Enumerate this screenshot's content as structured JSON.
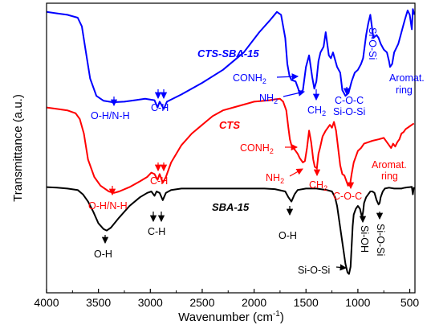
{
  "chart_data": {
    "type": "line",
    "xlabel": "Wavenumber (cm",
    "xlabel_sup": "-1",
    "xlabel_close": ")",
    "ylabel": "Transmittance (a.u.)",
    "xlim": [
      4000,
      450
    ],
    "x_reversed": true,
    "x_ticks": [
      "4000",
      "3500",
      "3000",
      "2500",
      "2000",
      "1500",
      "1000",
      "500"
    ],
    "y_ticks_shown": false,
    "grid": false,
    "legend": "none",
    "series": [
      {
        "name": "CTS-SBA-15",
        "color": "#0000ff",
        "points": [
          [
            4000,
            97
          ],
          [
            3900,
            96.5
          ],
          [
            3800,
            96
          ],
          [
            3700,
            95
          ],
          [
            3660,
            92
          ],
          [
            3620,
            83
          ],
          [
            3580,
            74
          ],
          [
            3520,
            68
          ],
          [
            3450,
            66.3
          ],
          [
            3360,
            65.8
          ],
          [
            3250,
            66
          ],
          [
            3150,
            66.5
          ],
          [
            3050,
            67
          ],
          [
            2960,
            66.5
          ],
          [
            2930,
            64
          ],
          [
            2910,
            66
          ],
          [
            2870,
            63.5
          ],
          [
            2840,
            66
          ],
          [
            2700,
            68.5
          ],
          [
            2500,
            72.5
          ],
          [
            2300,
            77
          ],
          [
            2100,
            83
          ],
          [
            1950,
            90
          ],
          [
            1850,
            94
          ],
          [
            1780,
            97
          ],
          [
            1740,
            96
          ],
          [
            1700,
            88
          ],
          [
            1680,
            79
          ],
          [
            1660,
            75
          ],
          [
            1640,
            73.5
          ],
          [
            1600,
            73
          ],
          [
            1560,
            69
          ],
          [
            1530,
            70
          ],
          [
            1500,
            78
          ],
          [
            1470,
            82
          ],
          [
            1440,
            74.5
          ],
          [
            1420,
            70.5
          ],
          [
            1400,
            73
          ],
          [
            1380,
            80
          ],
          [
            1360,
            83
          ],
          [
            1330,
            85
          ],
          [
            1310,
            90
          ],
          [
            1280,
            82
          ],
          [
            1260,
            81
          ],
          [
            1240,
            83
          ],
          [
            1200,
            78
          ],
          [
            1170,
            76
          ],
          [
            1150,
            70
          ],
          [
            1120,
            68
          ],
          [
            1090,
            69
          ],
          [
            1060,
            73
          ],
          [
            1030,
            76
          ],
          [
            1000,
            77
          ],
          [
            970,
            79
          ],
          [
            950,
            81
          ],
          [
            920,
            89
          ],
          [
            900,
            93
          ],
          [
            880,
            96
          ],
          [
            865,
            92
          ],
          [
            850,
            88
          ],
          [
            820,
            89
          ],
          [
            800,
            88
          ],
          [
            780,
            86
          ],
          [
            750,
            84
          ],
          [
            720,
            83
          ],
          [
            700,
            80
          ],
          [
            690,
            78
          ],
          [
            670,
            79
          ],
          [
            650,
            83
          ],
          [
            610,
            86
          ],
          [
            580,
            90
          ],
          [
            550,
            94
          ],
          [
            520,
            97.5
          ],
          [
            500,
            96
          ],
          [
            480,
            91
          ],
          [
            470,
            98
          ],
          [
            455,
            96
          ]
        ]
      },
      {
        "name": "CTS",
        "color": "#ff0000",
        "points": [
          [
            4000,
            64
          ],
          [
            3900,
            63.5
          ],
          [
            3800,
            63
          ],
          [
            3720,
            62
          ],
          [
            3680,
            60
          ],
          [
            3640,
            55
          ],
          [
            3600,
            46
          ],
          [
            3540,
            40
          ],
          [
            3480,
            37
          ],
          [
            3400,
            35
          ],
          [
            3350,
            34.5
          ],
          [
            3300,
            35
          ],
          [
            3200,
            36.5
          ],
          [
            3100,
            38.5
          ],
          [
            3030,
            40
          ],
          [
            2990,
            41.5
          ],
          [
            2960,
            41
          ],
          [
            2930,
            39
          ],
          [
            2910,
            41
          ],
          [
            2880,
            38
          ],
          [
            2850,
            40
          ],
          [
            2800,
            45
          ],
          [
            2700,
            51
          ],
          [
            2600,
            55
          ],
          [
            2500,
            58
          ],
          [
            2400,
            61
          ],
          [
            2300,
            63
          ],
          [
            2200,
            64
          ],
          [
            2100,
            65
          ],
          [
            2000,
            66
          ],
          [
            1900,
            66.3
          ],
          [
            1850,
            66.5
          ],
          [
            1800,
            66.8
          ],
          [
            1750,
            67
          ],
          [
            1720,
            66
          ],
          [
            1690,
            63
          ],
          [
            1670,
            57
          ],
          [
            1655,
            53
          ],
          [
            1640,
            51
          ],
          [
            1620,
            50
          ],
          [
            1600,
            49
          ],
          [
            1580,
            48
          ],
          [
            1560,
            46.5
          ],
          [
            1530,
            45
          ],
          [
            1510,
            45.5
          ],
          [
            1490,
            50
          ],
          [
            1470,
            56
          ],
          [
            1450,
            52
          ],
          [
            1430,
            46
          ],
          [
            1415,
            43.5
          ],
          [
            1395,
            43
          ],
          [
            1380,
            48
          ],
          [
            1365,
            50
          ],
          [
            1340,
            54
          ],
          [
            1310,
            56
          ],
          [
            1290,
            57
          ],
          [
            1270,
            58
          ],
          [
            1250,
            57
          ],
          [
            1230,
            59
          ],
          [
            1210,
            56
          ],
          [
            1190,
            50
          ],
          [
            1170,
            44
          ],
          [
            1150,
            41
          ],
          [
            1130,
            40.5
          ],
          [
            1110,
            38.5
          ],
          [
            1095,
            37
          ],
          [
            1075,
            37.5
          ],
          [
            1060,
            41
          ],
          [
            1040,
            45
          ],
          [
            1020,
            47
          ],
          [
            1000,
            49
          ],
          [
            970,
            50
          ],
          [
            940,
            51.5
          ],
          [
            900,
            52
          ],
          [
            860,
            52.5
          ],
          [
            800,
            53
          ],
          [
            750,
            53.5
          ],
          [
            700,
            51
          ],
          [
            680,
            50
          ],
          [
            660,
            51.5
          ],
          [
            640,
            50.5
          ],
          [
            620,
            52
          ],
          [
            600,
            53
          ],
          [
            580,
            55
          ],
          [
            560,
            55.5
          ],
          [
            540,
            56.5
          ],
          [
            520,
            57
          ],
          [
            500,
            57.5
          ],
          [
            480,
            58
          ],
          [
            460,
            58.5
          ]
        ]
      },
      {
        "name": "SBA-15",
        "color": "#000000",
        "points": [
          [
            4000,
            36.5
          ],
          [
            3900,
            36.3
          ],
          [
            3800,
            36
          ],
          [
            3700,
            35.5
          ],
          [
            3650,
            34
          ],
          [
            3600,
            31.5
          ],
          [
            3550,
            28
          ],
          [
            3500,
            24
          ],
          [
            3450,
            22
          ],
          [
            3420,
            21.5
          ],
          [
            3380,
            22.5
          ],
          [
            3300,
            26
          ],
          [
            3200,
            30
          ],
          [
            3100,
            33
          ],
          [
            3030,
            34.5
          ],
          [
            2990,
            35
          ],
          [
            2960,
            33.5
          ],
          [
            2940,
            35
          ],
          [
            2910,
            34.5
          ],
          [
            2880,
            32
          ],
          [
            2850,
            34.5
          ],
          [
            2800,
            35.5
          ],
          [
            2700,
            36
          ],
          [
            2500,
            36
          ],
          [
            2300,
            36
          ],
          [
            2100,
            36
          ],
          [
            2000,
            36
          ],
          [
            1900,
            36
          ],
          [
            1800,
            35.8
          ],
          [
            1700,
            35
          ],
          [
            1670,
            33
          ],
          [
            1640,
            31.5
          ],
          [
            1610,
            34
          ],
          [
            1580,
            35.5
          ],
          [
            1500,
            36
          ],
          [
            1400,
            36
          ],
          [
            1300,
            35.5
          ],
          [
            1250,
            35
          ],
          [
            1220,
            33
          ],
          [
            1200,
            30
          ],
          [
            1180,
            25
          ],
          [
            1160,
            20
          ],
          [
            1140,
            15
          ],
          [
            1120,
            10
          ],
          [
            1100,
            7
          ],
          [
            1085,
            6.5
          ],
          [
            1070,
            9
          ],
          [
            1060,
            16
          ],
          [
            1050,
            23
          ],
          [
            1040,
            27
          ],
          [
            1020,
            29
          ],
          [
            1000,
            30
          ],
          [
            980,
            29
          ],
          [
            960,
            26
          ],
          [
            950,
            28
          ],
          [
            940,
            31
          ],
          [
            920,
            33
          ],
          [
            900,
            34
          ],
          [
            880,
            35
          ],
          [
            860,
            35
          ],
          [
            840,
            34.5
          ],
          [
            820,
            32
          ],
          [
            800,
            30.5
          ],
          [
            790,
            31
          ],
          [
            780,
            33
          ],
          [
            760,
            35
          ],
          [
            740,
            36
          ],
          [
            700,
            36.3
          ],
          [
            650,
            36
          ],
          [
            600,
            36
          ],
          [
            580,
            36
          ],
          [
            560,
            36.2
          ],
          [
            530,
            36.4
          ],
          [
            500,
            36.5
          ],
          [
            480,
            36.6
          ],
          [
            470,
            34
          ],
          [
            460,
            36.5
          ]
        ]
      }
    ],
    "annotations": {
      "blue_name": "CTS-SBA-15",
      "red_name": "CTS",
      "black_name": "SBA-15",
      "blue_oh": "O-H/N-H",
      "blue_ch": "C-H",
      "blue_conh": "CONH",
      "blue_conh_sub": "2",
      "blue_nh": "NH",
      "blue_nh_sub": "2",
      "blue_ch2": "CH",
      "blue_ch2_sub": "2",
      "blue_coc": "C-O-C",
      "blue_siosi": "Si-O-Si",
      "blue_vert": "Si-O-Si",
      "blue_arom1": "Aromat.",
      "blue_arom2": "ring",
      "red_conh": "CONH",
      "red_conh_sub": "2",
      "red_nh": "NH",
      "red_nh_sub": "2",
      "red_ch2": "CH",
      "red_ch2_sub": "2",
      "red_ch": "C-H",
      "red_oh": "O-H/N-H",
      "red_coc": "C-O-C",
      "red_arom1": "Aromat.",
      "red_arom2": "ring",
      "black_oh": "O-H",
      "black_ch": "C-H",
      "black_oh2": "O-H",
      "black_siosi": "Si-O-Si",
      "black_sioh": "Si-OH",
      "black_siosi2": "Si-O-Si"
    }
  }
}
